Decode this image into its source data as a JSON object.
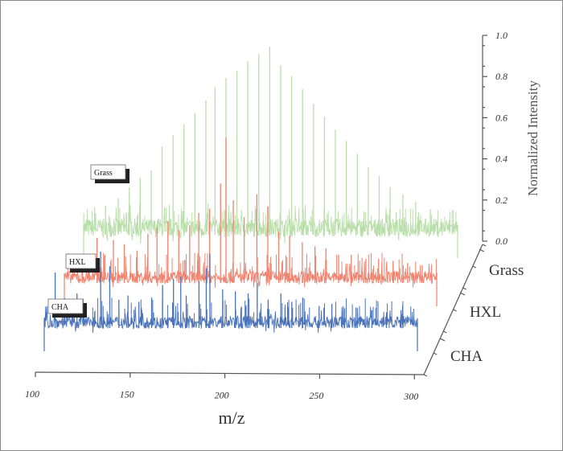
{
  "chart_data": {
    "type": "line",
    "subtype": "3d-waterfall",
    "title": "",
    "xlabel": "m/z",
    "zlabel": "Normalized Intensity",
    "xlim": [
      100,
      305
    ],
    "x_ticks": [
      "100",
      "150",
      "200",
      "250",
      "300"
    ],
    "zlim": [
      0,
      1.0
    ],
    "z_ticks": [
      "0.0",
      "0.2",
      "0.4",
      "0.6",
      "0.8",
      "1.0"
    ],
    "categories": [
      "CHA",
      "HXL",
      "Grass"
    ],
    "series": [
      {
        "name": "CHA",
        "color": "#4a72b8",
        "noise": 0.03,
        "peaks": [
          [
            106,
            0.25
          ],
          [
            118,
            0.15
          ],
          [
            131,
            0.35
          ],
          [
            136,
            0.28
          ],
          [
            141,
            0.12
          ],
          [
            146,
            0.14
          ],
          [
            152,
            0.11
          ],
          [
            159,
            0.13
          ],
          [
            165,
            0.19
          ],
          [
            171,
            0.22
          ],
          [
            175,
            0.23
          ],
          [
            178,
            0.14
          ],
          [
            185,
            0.21
          ],
          [
            189,
            0.27
          ],
          [
            191,
            0.34
          ],
          [
            198,
            0.17
          ],
          [
            205,
            0.16
          ],
          [
            212,
            0.15
          ],
          [
            217,
            0.2
          ],
          [
            223,
            0.12
          ],
          [
            230,
            0.15
          ],
          [
            236,
            0.11
          ],
          [
            242,
            0.13
          ],
          [
            251,
            0.09
          ],
          [
            258,
            0.1
          ],
          [
            265,
            0.08
          ],
          [
            272,
            0.08
          ],
          [
            280,
            0.07
          ],
          [
            288,
            0.06
          ],
          [
            296,
            0.07
          ]
        ]
      },
      {
        "name": "HXL",
        "color": "#f0826e",
        "noise": 0.03,
        "peaks": [
          [
            110,
            0.1
          ],
          [
            118,
            0.2
          ],
          [
            127,
            0.19
          ],
          [
            133,
            0.17
          ],
          [
            140,
            0.14
          ],
          [
            146,
            0.22
          ],
          [
            151,
            0.25
          ],
          [
            157,
            0.28
          ],
          [
            163,
            0.24
          ],
          [
            169,
            0.26
          ],
          [
            174,
            0.32
          ],
          [
            180,
            0.34
          ],
          [
            186,
            0.46
          ],
          [
            189,
            0.68
          ],
          [
            193,
            0.38
          ],
          [
            199,
            0.3
          ],
          [
            206,
            0.41
          ],
          [
            212,
            0.35
          ],
          [
            218,
            0.23
          ],
          [
            224,
            0.21
          ],
          [
            231,
            0.18
          ],
          [
            238,
            0.16
          ],
          [
            244,
            0.15
          ],
          [
            251,
            0.12
          ],
          [
            258,
            0.12
          ],
          [
            266,
            0.1
          ],
          [
            273,
            0.1
          ],
          [
            281,
            0.09
          ],
          [
            289,
            0.08
          ],
          [
            297,
            0.07
          ]
        ]
      },
      {
        "name": "Grass",
        "color": "#b9deaa",
        "noise": 0.05,
        "peaks": [
          [
            112,
            0.14
          ],
          [
            119,
            0.18
          ],
          [
            125,
            0.24
          ],
          [
            131,
            0.29
          ],
          [
            137,
            0.33
          ],
          [
            143,
            0.46
          ],
          [
            149,
            0.52
          ],
          [
            155,
            0.58
          ],
          [
            161,
            0.64
          ],
          [
            167,
            0.71
          ],
          [
            172,
            0.78
          ],
          [
            178,
            0.83
          ],
          [
            184,
            0.87
          ],
          [
            190,
            0.92
          ],
          [
            196,
            0.96
          ],
          [
            202,
            1.0
          ],
          [
            208,
            0.9
          ],
          [
            214,
            0.84
          ],
          [
            220,
            0.77
          ],
          [
            226,
            0.69
          ],
          [
            232,
            0.62
          ],
          [
            238,
            0.55
          ],
          [
            244,
            0.49
          ],
          [
            250,
            0.42
          ],
          [
            256,
            0.35
          ],
          [
            262,
            0.3
          ],
          [
            268,
            0.24
          ],
          [
            275,
            0.2
          ],
          [
            282,
            0.16
          ],
          [
            290,
            0.12
          ]
        ]
      }
    ],
    "grid": false,
    "legend": "labels on each trace"
  }
}
